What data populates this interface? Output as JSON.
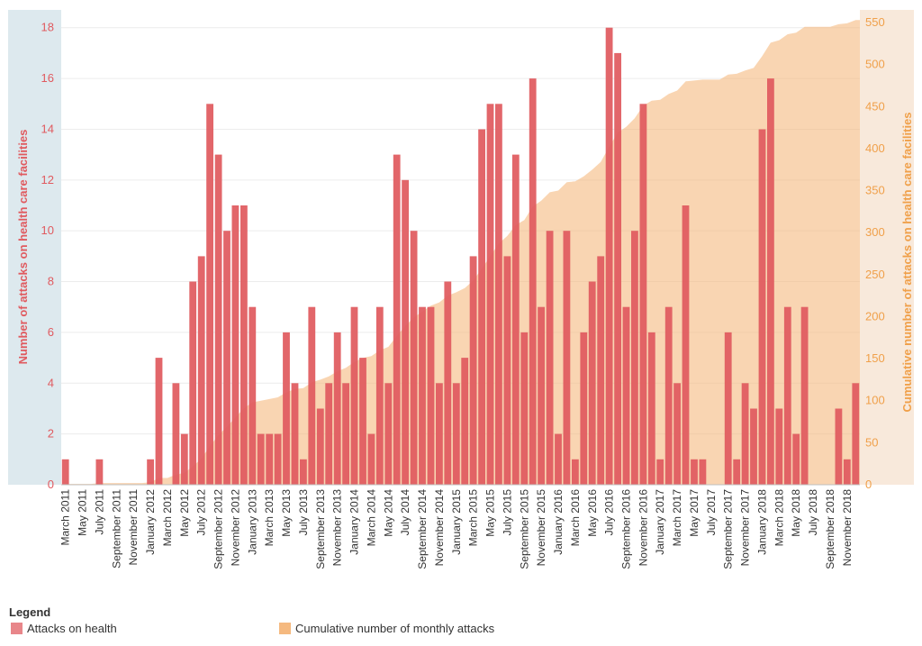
{
  "chart_data": {
    "type": "bar+area",
    "ylabel_left": "Number of attacks on health care facilities",
    "ylabel_right": "Cumulative number of attacks on health care facilities",
    "ylim_left": [
      0,
      18.7
    ],
    "ylim_right": [
      0,
      565
    ],
    "left_ticks": [
      0,
      2,
      4,
      6,
      8,
      10,
      12,
      14,
      16,
      18
    ],
    "right_ticks": [
      0,
      50,
      100,
      150,
      200,
      250,
      300,
      350,
      400,
      450,
      500,
      550
    ],
    "months": [
      "March 2011",
      "April 2011",
      "May 2011",
      "June 2011",
      "July 2011",
      "August 2011",
      "September 2011",
      "October 2011",
      "November 2011",
      "December 2011",
      "January 2012",
      "February 2012",
      "March 2012",
      "April 2012",
      "May 2012",
      "June 2012",
      "July 2012",
      "August 2012",
      "September 2012",
      "October 2012",
      "November 2012",
      "December 2012",
      "January 2013",
      "February 2013",
      "March 2013",
      "April 2013",
      "May 2013",
      "June 2013",
      "July 2013",
      "August 2013",
      "September 2013",
      "October 2013",
      "November 2013",
      "December 2013",
      "January 2014",
      "February 2014",
      "March 2014",
      "April 2014",
      "May 2014",
      "June 2014",
      "July 2014",
      "August 2014",
      "September 2014",
      "October 2014",
      "November 2014",
      "December 2014",
      "January 2015",
      "February 2015",
      "March 2015",
      "April 2015",
      "May 2015",
      "June 2015",
      "July 2015",
      "August 2015",
      "September 2015",
      "October 2015",
      "November 2015",
      "December 2015",
      "January 2016",
      "February 2016",
      "March 2016",
      "April 2016",
      "May 2016",
      "June 2016",
      "July 2016",
      "August 2016",
      "September 2016",
      "October 2016",
      "November 2016",
      "December 2016",
      "January 2017",
      "February 2017",
      "March 2017",
      "April 2017",
      "May 2017",
      "June 2017",
      "July 2017",
      "August 2017",
      "September 2017",
      "October 2017",
      "November 2017",
      "December 2017",
      "January 2018",
      "February 2018",
      "March 2018",
      "April 2018",
      "May 2018",
      "June 2018",
      "July 2018",
      "August 2018",
      "September 2018",
      "October 2018",
      "November 2018",
      "December 2018"
    ],
    "tick_labels": [
      "March 2011",
      "May 2011",
      "July 2011",
      "September 2011",
      "November 2011",
      "January 2012",
      "March 2012",
      "May 2012",
      "July 2012",
      "September 2012",
      "November 2012",
      "January 2013",
      "March 2013",
      "May 2013",
      "July 2013",
      "September 2013",
      "November 2013",
      "January 2014",
      "March 2014",
      "May 2014",
      "July 2014",
      "September 2014",
      "November 2014",
      "January 2015",
      "March 2015",
      "May 2015",
      "July 2015",
      "September 2015",
      "November 2015",
      "January 2016",
      "March 2016",
      "May 2016",
      "July 2016",
      "September 2016",
      "November 2016",
      "January 2017",
      "March 2017",
      "May 2017",
      "July 2017",
      "September 2017",
      "November 2017",
      "January 2018",
      "March 2018",
      "May 2018",
      "July 2018",
      "September 2018",
      "November 2018"
    ],
    "series": [
      {
        "name": "Attacks on health",
        "type": "bar",
        "color": "#e05a5f",
        "values": [
          1,
          0,
          0,
          0,
          1,
          0,
          0,
          0,
          0,
          0,
          1,
          5,
          0,
          4,
          2,
          8,
          9,
          15,
          13,
          10,
          11,
          11,
          7,
          2,
          2,
          2,
          6,
          4,
          1,
          7,
          3,
          4,
          6,
          4,
          7,
          5,
          2,
          7,
          4,
          13,
          12,
          10,
          7,
          7,
          4,
          8,
          4,
          5,
          9,
          14,
          15,
          15,
          9,
          13,
          6,
          16,
          7,
          10,
          2,
          10,
          1,
          6,
          8,
          9,
          18,
          17,
          7,
          10,
          15,
          6,
          1,
          7,
          4,
          11,
          1,
          1,
          0,
          0,
          6,
          1,
          4,
          3,
          14,
          16,
          3,
          7,
          2,
          7,
          0,
          0,
          0,
          3,
          1,
          4
        ]
      },
      {
        "name": "Cumulative number of monthly attacks",
        "type": "area",
        "color": "#f5b97f",
        "values": [
          1,
          1,
          1,
          1,
          2,
          2,
          2,
          2,
          2,
          2,
          3,
          8,
          8,
          12,
          14,
          22,
          31,
          46,
          59,
          69,
          80,
          91,
          98,
          100,
          102,
          104,
          110,
          114,
          115,
          122,
          125,
          129,
          135,
          139,
          146,
          151,
          153,
          160,
          164,
          177,
          189,
          199,
          206,
          213,
          217,
          225,
          229,
          234,
          243,
          257,
          272,
          287,
          296,
          309,
          315,
          331,
          338,
          348,
          350,
          360,
          361,
          367,
          375,
          384,
          402,
          419,
          426,
          436,
          451,
          457,
          458,
          465,
          469,
          480,
          481,
          482,
          482,
          482,
          488,
          489,
          493,
          496,
          510,
          526,
          529,
          536,
          538,
          545,
          545,
          545,
          545,
          548,
          549,
          553
        ]
      }
    ],
    "legend_title": "Legend",
    "legend_position": "bottom-left",
    "grid": true
  }
}
